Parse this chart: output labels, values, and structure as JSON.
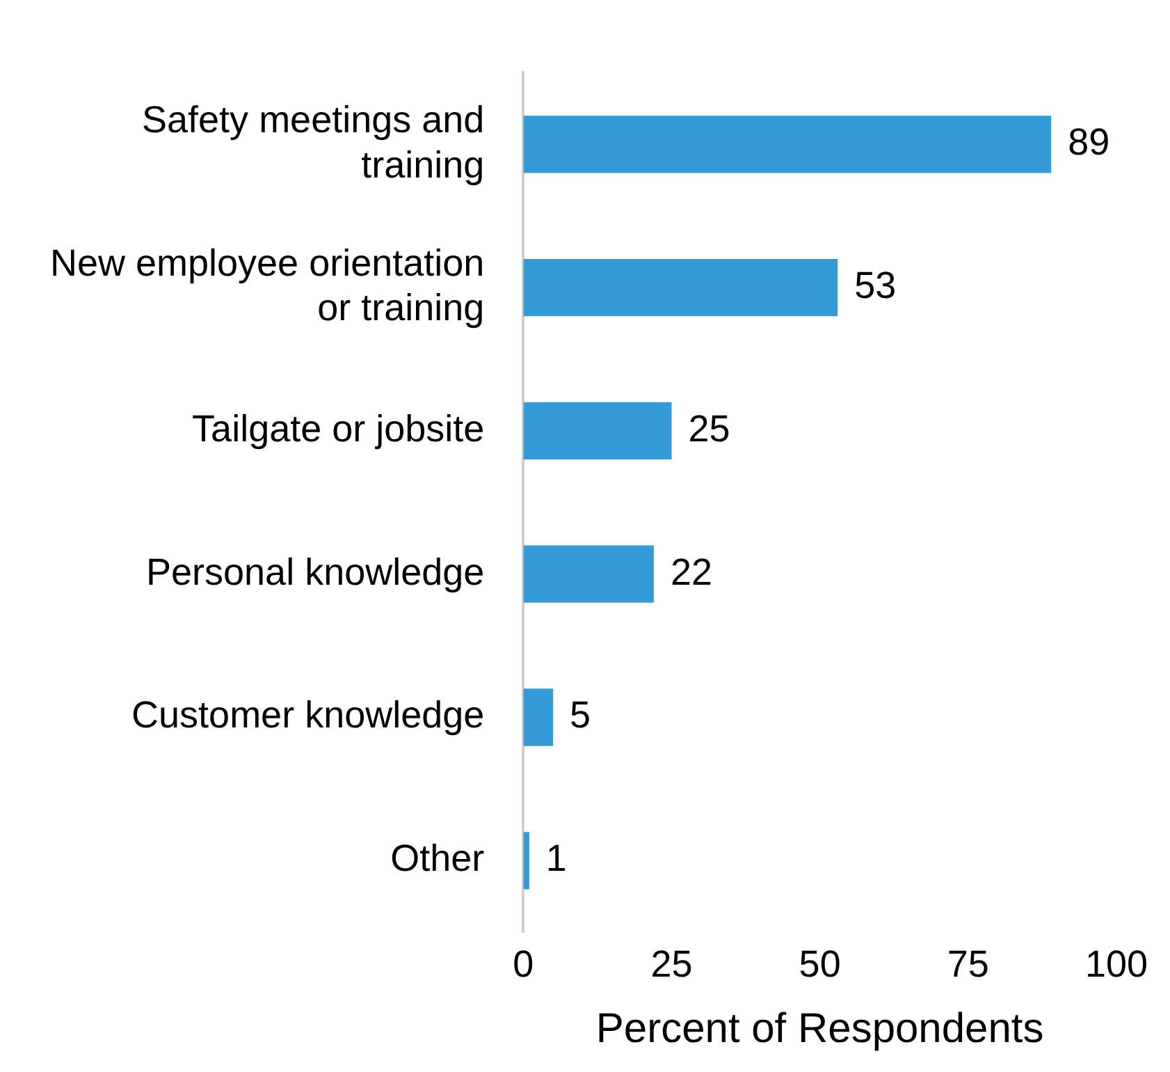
{
  "chart_data": {
    "type": "bar",
    "orientation": "horizontal",
    "xlabel": "Percent of Respondents",
    "categories": [
      "Safety meetings and training",
      "New employee orientation or training",
      "Tailgate or jobsite",
      "Personal knowledge",
      "Customer knowledge",
      "Other"
    ],
    "values": [
      89,
      53,
      25,
      22,
      5,
      1
    ],
    "color": "#349bd8",
    "xlim": [
      0,
      100
    ],
    "xticks": [
      0,
      25,
      50,
      75,
      100
    ],
    "grid": false,
    "legend": false,
    "data_labels": true
  }
}
